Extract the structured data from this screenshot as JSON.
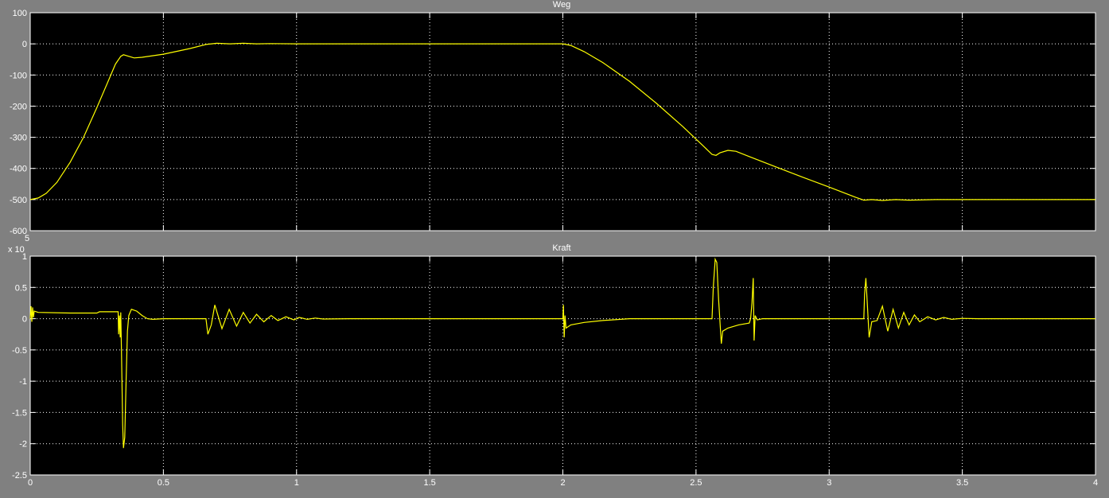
{
  "chart_data": [
    {
      "type": "line",
      "title": "Weg",
      "xlabel": "",
      "ylabel": "",
      "xlim": [
        0,
        4
      ],
      "ylim": [
        -600,
        100
      ],
      "xticks": [
        "0",
        "0.5",
        "1",
        "1.5",
        "2",
        "2.5",
        "3",
        "3.5",
        "4"
      ],
      "yticks": [
        "100",
        "0",
        "-100",
        "-200",
        "-300",
        "-400",
        "-500",
        "-600"
      ],
      "grid": true,
      "line_color": "#ffff00",
      "series": [
        {
          "points": [
            [
              0,
              -500
            ],
            [
              0.03,
              -495
            ],
            [
              0.06,
              -480
            ],
            [
              0.1,
              -445
            ],
            [
              0.15,
              -380
            ],
            [
              0.2,
              -300
            ],
            [
              0.25,
              -205
            ],
            [
              0.29,
              -125
            ],
            [
              0.32,
              -65
            ],
            [
              0.34,
              -40
            ],
            [
              0.35,
              -35
            ],
            [
              0.37,
              -40
            ],
            [
              0.39,
              -45
            ],
            [
              0.42,
              -43
            ],
            [
              0.5,
              -33
            ],
            [
              0.6,
              -15
            ],
            [
              0.66,
              -2
            ],
            [
              0.7,
              2
            ],
            [
              0.75,
              0
            ],
            [
              0.8,
              2
            ],
            [
              0.85,
              0
            ],
            [
              0.9,
              1
            ],
            [
              1.0,
              0
            ],
            [
              2.0,
              0
            ],
            [
              2.03,
              -5
            ],
            [
              2.08,
              -25
            ],
            [
              2.15,
              -60
            ],
            [
              2.25,
              -120
            ],
            [
              2.35,
              -190
            ],
            [
              2.45,
              -265
            ],
            [
              2.53,
              -330
            ],
            [
              2.56,
              -355
            ],
            [
              2.575,
              -358
            ],
            [
              2.59,
              -350
            ],
            [
              2.62,
              -342
            ],
            [
              2.65,
              -345
            ],
            [
              2.7,
              -362
            ],
            [
              2.8,
              -395
            ],
            [
              2.9,
              -428
            ],
            [
              3.0,
              -460
            ],
            [
              3.1,
              -493
            ],
            [
              3.13,
              -502
            ],
            [
              3.16,
              -500
            ],
            [
              3.2,
              -503
            ],
            [
              3.25,
              -500
            ],
            [
              3.3,
              -502
            ],
            [
              3.4,
              -500
            ],
            [
              4.0,
              -500
            ]
          ]
        }
      ]
    },
    {
      "type": "line",
      "title": "Kraft",
      "xlabel": "",
      "ylabel": "",
      "y_multiplier": "x 10",
      "y_exponent": "5",
      "xlim": [
        0,
        4
      ],
      "ylim": [
        -2.5,
        1
      ],
      "xticks": [
        "0",
        "0.5",
        "1",
        "1.5",
        "2",
        "2.5",
        "3",
        "3.5",
        "4"
      ],
      "yticks": [
        "1",
        "0.5",
        "0",
        "-0.5",
        "-1",
        "-1.5",
        "-2",
        "-2.5"
      ],
      "grid": true,
      "line_color": "#ffff00",
      "series": [
        {
          "points": [
            [
              0,
              0
            ],
            [
              0.003,
              0.2
            ],
            [
              0.006,
              -0.05
            ],
            [
              0.009,
              0.18
            ],
            [
              0.012,
              0.02
            ],
            [
              0.015,
              0.12
            ],
            [
              0.03,
              0.1
            ],
            [
              0.15,
              0.09
            ],
            [
              0.25,
              0.09
            ],
            [
              0.26,
              0.11
            ],
            [
              0.33,
              0.11
            ],
            [
              0.332,
              -0.25
            ],
            [
              0.335,
              0.05
            ],
            [
              0.338,
              -0.3
            ],
            [
              0.34,
              0.1
            ],
            [
              0.343,
              -0.6
            ],
            [
              0.347,
              -1.7
            ],
            [
              0.35,
              -2.07
            ],
            [
              0.355,
              -1.9
            ],
            [
              0.36,
              -1.0
            ],
            [
              0.365,
              -0.2
            ],
            [
              0.37,
              0.05
            ],
            [
              0.38,
              0.15
            ],
            [
              0.4,
              0.12
            ],
            [
              0.42,
              0.05
            ],
            [
              0.44,
              0.0
            ],
            [
              0.46,
              -0.01
            ],
            [
              0.5,
              0
            ],
            [
              0.66,
              0
            ],
            [
              0.667,
              -0.25
            ],
            [
              0.68,
              -0.1
            ],
            [
              0.693,
              0.22
            ],
            [
              0.72,
              -0.16
            ],
            [
              0.747,
              0.15
            ],
            [
              0.775,
              -0.12
            ],
            [
              0.8,
              0.1
            ],
            [
              0.825,
              -0.07
            ],
            [
              0.85,
              0.07
            ],
            [
              0.877,
              -0.05
            ],
            [
              0.905,
              0.05
            ],
            [
              0.93,
              -0.03
            ],
            [
              0.96,
              0.03
            ],
            [
              0.99,
              -0.02
            ],
            [
              1.01,
              0.02
            ],
            [
              1.04,
              -0.01
            ],
            [
              1.07,
              0.01
            ],
            [
              1.1,
              -0.005
            ],
            [
              1.2,
              0
            ],
            [
              2.0,
              0
            ],
            [
              2.002,
              0.22
            ],
            [
              2.005,
              -0.3
            ],
            [
              2.008,
              0.05
            ],
            [
              2.012,
              -0.15
            ],
            [
              2.03,
              -0.1
            ],
            [
              2.08,
              -0.06
            ],
            [
              2.15,
              -0.03
            ],
            [
              2.25,
              0
            ],
            [
              2.56,
              0
            ],
            [
              2.565,
              0.5
            ],
            [
              2.572,
              0.95
            ],
            [
              2.578,
              0.9
            ],
            [
              2.585,
              0.3
            ],
            [
              2.595,
              -0.4
            ],
            [
              2.6,
              -0.2
            ],
            [
              2.62,
              -0.15
            ],
            [
              2.66,
              -0.1
            ],
            [
              2.7,
              -0.07
            ],
            [
              2.705,
              0
            ],
            [
              2.71,
              0.25
            ],
            [
              2.715,
              0.65
            ],
            [
              2.718,
              -0.35
            ],
            [
              2.722,
              0.05
            ],
            [
              2.73,
              -0.02
            ],
            [
              2.75,
              0
            ],
            [
              3.13,
              0
            ],
            [
              3.133,
              0.4
            ],
            [
              3.138,
              0.65
            ],
            [
              3.145,
              0.1
            ],
            [
              3.15,
              -0.3
            ],
            [
              3.16,
              -0.05
            ],
            [
              3.18,
              -0.03
            ],
            [
              3.2,
              0.2
            ],
            [
              3.22,
              -0.2
            ],
            [
              3.24,
              0.15
            ],
            [
              3.26,
              -0.15
            ],
            [
              3.28,
              0.1
            ],
            [
              3.3,
              -0.1
            ],
            [
              3.32,
              0.06
            ],
            [
              3.34,
              -0.05
            ],
            [
              3.37,
              0.03
            ],
            [
              3.4,
              -0.02
            ],
            [
              3.43,
              0.02
            ],
            [
              3.46,
              -0.01
            ],
            [
              3.5,
              0.005
            ],
            [
              3.56,
              0
            ],
            [
              4.0,
              0
            ]
          ]
        }
      ]
    }
  ]
}
